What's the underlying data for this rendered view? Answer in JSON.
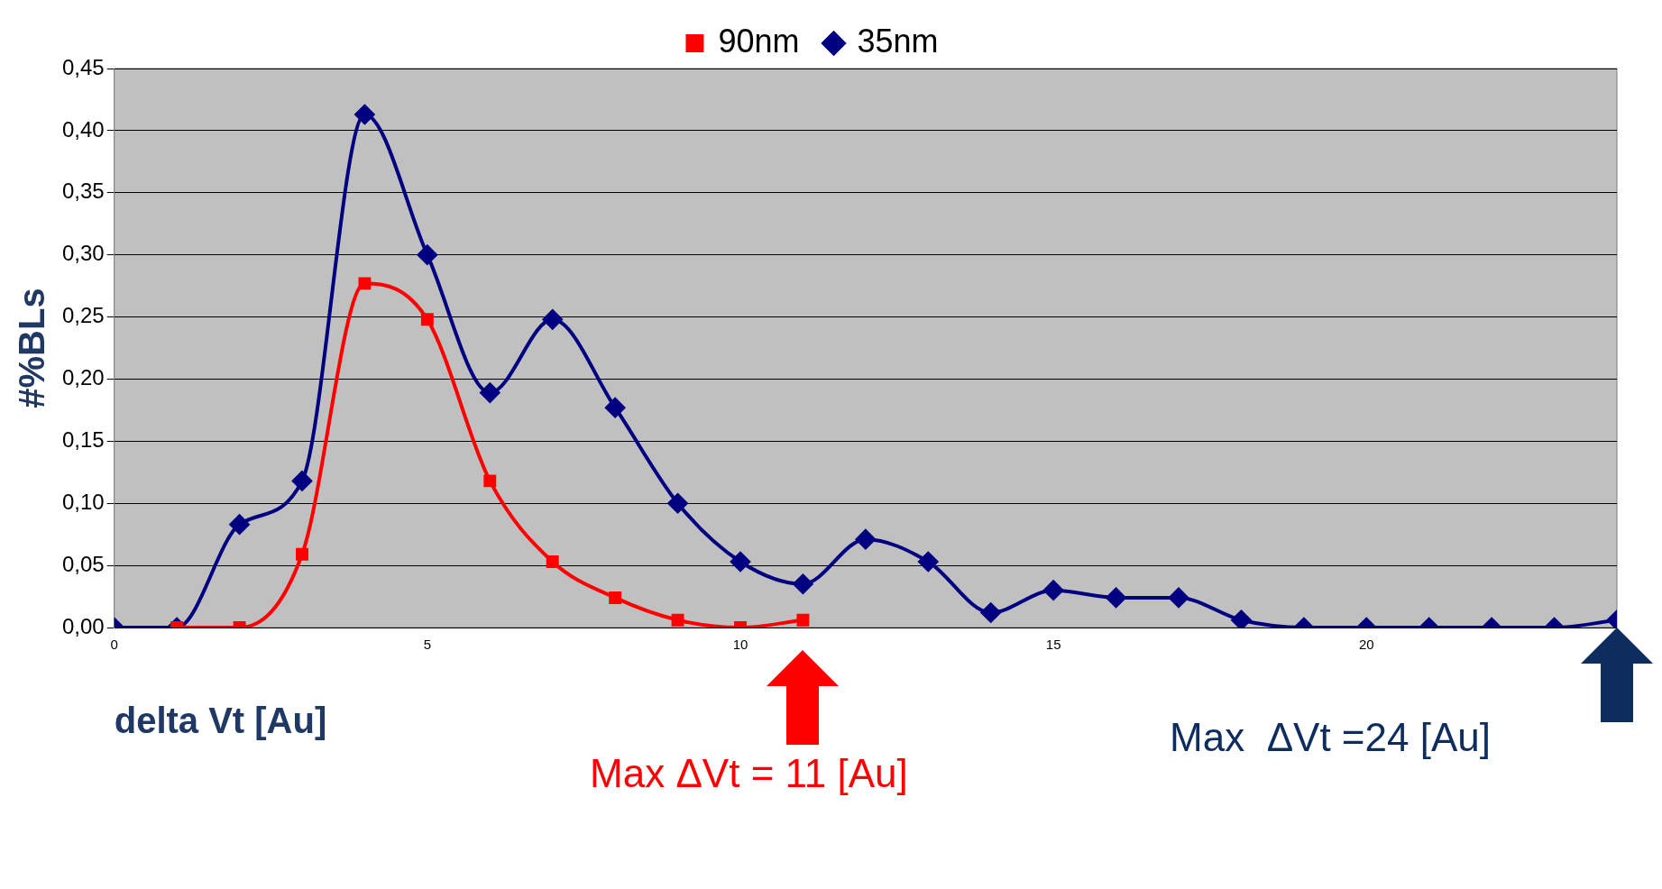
{
  "chart_data": {
    "type": "line",
    "xlabel": "delta Vt [Au]",
    "ylabel": "#%BLs",
    "xlim": [
      0,
      24
    ],
    "xticks": [
      0,
      5,
      10,
      15,
      20
    ],
    "ylim": [
      0,
      0.45
    ],
    "yticks": [
      {
        "value": 0,
        "label": "0,00"
      },
      {
        "value": 0.05,
        "label": "0,05"
      },
      {
        "value": 0.1,
        "label": "0,10"
      },
      {
        "value": 0.15,
        "label": "0,15"
      },
      {
        "value": 0.2,
        "label": "0,20"
      },
      {
        "value": 0.25,
        "label": "0,25"
      },
      {
        "value": 0.3,
        "label": "0,30"
      },
      {
        "value": 0.35,
        "label": "0,35"
      },
      {
        "value": 0.4,
        "label": "0,40"
      },
      {
        "value": 0.45,
        "label": "0,45"
      }
    ],
    "grid": "y",
    "legend": "top",
    "series": [
      {
        "name": "90nm",
        "color": "#ff0000",
        "marker": "square",
        "x": [
          1,
          2,
          3,
          4,
          5,
          6,
          7,
          8,
          9,
          10,
          11
        ],
        "values": [
          0,
          0,
          0.059,
          0.277,
          0.248,
          0.118,
          0.053,
          0.024,
          0.006,
          0,
          0.006
        ]
      },
      {
        "name": "35nm",
        "color": "#000080",
        "marker": "diamond",
        "x": [
          0,
          1,
          2,
          3,
          4,
          5,
          6,
          7,
          8,
          9,
          10,
          11,
          12,
          13,
          14,
          15,
          16,
          17,
          18,
          19,
          20,
          21,
          22,
          23,
          24
        ],
        "values": [
          0,
          0,
          0.083,
          0.118,
          0.413,
          0.3,
          0.189,
          0.248,
          0.177,
          0.1,
          0.053,
          0.035,
          0.071,
          0.053,
          0.012,
          0.03,
          0.024,
          0.024,
          0.006,
          0,
          0,
          0,
          0,
          0,
          0.006
        ]
      }
    ],
    "annotations": [
      "Max ΔVt = 11 [Au]",
      "Max  ΔVt =24 [Au]"
    ]
  }
}
